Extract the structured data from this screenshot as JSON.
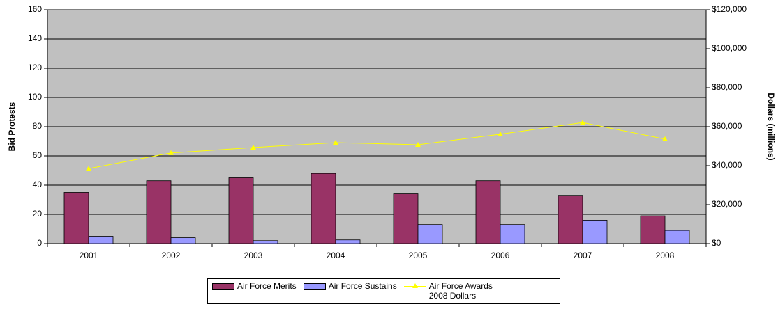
{
  "chart_data": {
    "type": "bar",
    "categories": [
      "2001",
      "2002",
      "2003",
      "2004",
      "2005",
      "2006",
      "2007",
      "2008"
    ],
    "y_label": "Bid Protests",
    "y2_label": "Dollars (millions)",
    "ylim": [
      0,
      160
    ],
    "yticks": [
      0,
      20,
      40,
      60,
      80,
      100,
      120,
      140,
      160
    ],
    "y2lim": [
      0,
      120000
    ],
    "y2ticks": [
      {
        "value": 0,
        "label": "$0"
      },
      {
        "value": 20000,
        "label": "$20,000"
      },
      {
        "value": 40000,
        "label": "$40,000"
      },
      {
        "value": 60000,
        "label": "$60,000"
      },
      {
        "value": 80000,
        "label": "$80,000"
      },
      {
        "value": 100000,
        "label": "$100,000"
      },
      {
        "value": 120000,
        "label": "$120,000"
      }
    ],
    "grid": true,
    "series": [
      {
        "name": "Air Force Merits",
        "type": "bar",
        "color": "#993366",
        "values": [
          35,
          43,
          45,
          48,
          34,
          43,
          33,
          19
        ]
      },
      {
        "name": "Air Force Sustains",
        "type": "bar",
        "color": "#9999ff",
        "values": [
          5,
          4,
          2,
          2.5,
          13,
          13,
          16,
          9
        ]
      },
      {
        "name": "Air Force Awards 2008 Dollars",
        "type": "line",
        "axis": "y2",
        "color": "#ffff00",
        "values": [
          38500,
          46500,
          49300,
          51800,
          50700,
          56100,
          62100,
          53600
        ]
      }
    ]
  }
}
